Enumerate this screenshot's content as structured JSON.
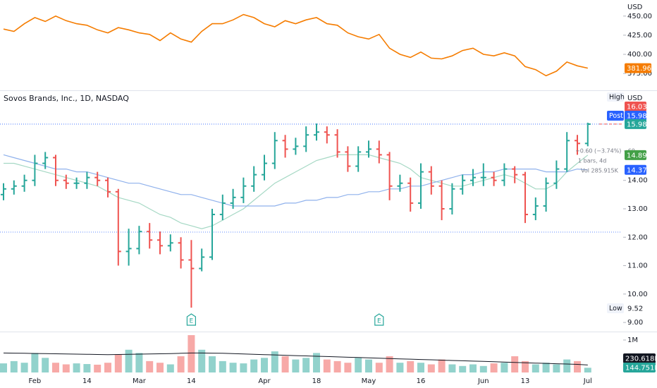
{
  "chart_data": [
    {
      "type": "line",
      "unit_label": "USD",
      "series": [
        {
          "color": "#f57c00",
          "values": [
            433,
            430,
            440,
            448,
            443,
            450,
            444,
            440,
            438,
            432,
            428,
            435,
            432,
            428,
            426,
            418,
            428,
            420,
            416,
            430,
            440,
            440,
            445,
            452,
            448,
            440,
            436,
            444,
            440,
            445,
            448,
            440,
            438,
            428,
            423,
            420,
            426,
            408,
            400,
            396,
            403,
            395,
            394,
            398,
            405,
            408,
            400,
            398,
            402,
            398,
            384,
            380,
            372,
            378,
            390,
            385,
            381.96
          ]
        }
      ],
      "ylim": [
        353,
        471
      ],
      "yticks": [
        {
          "value": 375,
          "label": "375.00"
        },
        {
          "value": 400,
          "label": "400.00"
        },
        {
          "value": 425,
          "label": "425.00"
        },
        {
          "value": 450,
          "label": "450.00"
        }
      ]
    },
    {
      "type": "ohlc",
      "legend": "Sovos Brands, Inc., 1D, NASDAQ",
      "unit_label": "USD",
      "categories": [
        null,
        null,
        null,
        "Feb",
        null,
        null,
        null,
        null,
        "14",
        null,
        null,
        null,
        null,
        "Mar",
        null,
        null,
        null,
        null,
        "14",
        null,
        null,
        null,
        null,
        null,
        null,
        "Apr",
        null,
        null,
        null,
        null,
        "18",
        null,
        null,
        null,
        null,
        "May",
        null,
        null,
        null,
        null,
        "16",
        null,
        null,
        null,
        null,
        null,
        "Jun",
        null,
        null,
        null,
        "13",
        null,
        null,
        null,
        null,
        null,
        "Jul"
      ],
      "open": [
        13.5,
        13.7,
        13.8,
        14.0,
        14.6,
        14.8,
        14.0,
        13.9,
        13.9,
        14.1,
        14.0,
        13.6,
        11.5,
        11.6,
        12.2,
        11.9,
        11.7,
        11.8,
        11.2,
        10.9,
        11.3,
        12.8,
        13.2,
        13.4,
        13.8,
        14.2,
        14.6,
        15.4,
        15.1,
        15.2,
        15.6,
        15.7,
        15.6,
        15.0,
        14.5,
        15.0,
        15.1,
        14.9,
        13.8,
        13.9,
        13.2,
        14.3,
        13.8,
        13.0,
        13.7,
        14.0,
        14.1,
        14.1,
        14.0,
        14.4,
        14.2,
        12.8,
        13.1,
        13.9,
        14.4,
        15.4,
        15.3
      ],
      "high": [
        13.9,
        14.0,
        14.2,
        14.9,
        15.0,
        14.9,
        14.2,
        14.1,
        14.3,
        14.3,
        14.1,
        13.7,
        12.3,
        12.4,
        12.5,
        12.2,
        12.1,
        12.0,
        11.9,
        11.6,
        13.0,
        13.5,
        13.7,
        14.1,
        14.5,
        14.9,
        15.7,
        15.6,
        15.5,
        15.9,
        16.0,
        15.9,
        15.8,
        15.2,
        15.2,
        15.4,
        15.4,
        15.0,
        14.2,
        14.1,
        14.6,
        14.5,
        14.0,
        13.9,
        14.2,
        14.4,
        14.6,
        14.3,
        14.6,
        14.5,
        14.3,
        13.4,
        14.1,
        14.7,
        15.7,
        15.6,
        16.03
      ],
      "low": [
        13.3,
        13.5,
        13.6,
        13.8,
        14.4,
        13.8,
        13.7,
        13.7,
        13.7,
        13.8,
        13.4,
        11.0,
        11.0,
        11.4,
        11.6,
        11.4,
        11.5,
        10.9,
        9.52,
        10.8,
        11.2,
        12.6,
        13.0,
        13.2,
        13.6,
        14.0,
        14.4,
        14.8,
        14.9,
        15.0,
        15.4,
        15.3,
        14.8,
        14.3,
        14.3,
        14.8,
        14.6,
        13.3,
        13.6,
        12.9,
        13.0,
        13.5,
        12.6,
        12.8,
        13.5,
        13.8,
        13.8,
        13.8,
        13.8,
        13.9,
        12.5,
        12.6,
        12.9,
        13.7,
        14.3,
        14.9,
        15.2
      ],
      "close": [
        13.7,
        13.8,
        14.0,
        14.6,
        14.8,
        14.0,
        13.9,
        13.9,
        14.1,
        14.0,
        13.6,
        11.5,
        11.6,
        12.2,
        11.9,
        11.7,
        11.8,
        11.2,
        10.9,
        11.3,
        12.8,
        13.2,
        13.4,
        13.8,
        14.2,
        14.6,
        15.4,
        15.1,
        15.2,
        15.6,
        15.7,
        15.6,
        15.0,
        14.5,
        15.0,
        15.1,
        14.9,
        13.8,
        13.9,
        13.2,
        14.3,
        13.8,
        13.0,
        13.7,
        14.0,
        14.1,
        14.1,
        14.0,
        14.4,
        14.2,
        12.8,
        13.1,
        13.9,
        14.4,
        15.4,
        15.3,
        15.98
      ],
      "up_color": "#26a69a",
      "down_color": "#ef5350",
      "series": [
        {
          "color": "#a5d8c4",
          "label_color": "#43a047",
          "values": [
            14.6,
            14.6,
            14.5,
            14.4,
            14.3,
            14.2,
            14.1,
            14.0,
            13.9,
            13.8,
            13.6,
            13.4,
            13.3,
            13.2,
            13.0,
            12.8,
            12.7,
            12.5,
            12.4,
            12.3,
            12.4,
            12.6,
            12.8,
            13.0,
            13.3,
            13.6,
            13.9,
            14.1,
            14.3,
            14.5,
            14.7,
            14.8,
            14.9,
            14.9,
            14.9,
            14.9,
            14.8,
            14.7,
            14.6,
            14.4,
            14.1,
            14.0,
            13.9,
            13.8,
            13.8,
            13.9,
            14.0,
            14.1,
            14.2,
            14.1,
            13.9,
            13.7,
            13.7,
            13.9,
            14.3,
            14.6,
            14.89
          ]
        },
        {
          "color": "#8fb1ec",
          "label_color": "#2962ff",
          "values": [
            14.9,
            14.8,
            14.7,
            14.6,
            14.5,
            14.4,
            14.4,
            14.3,
            14.3,
            14.2,
            14.1,
            14.0,
            13.9,
            13.9,
            13.8,
            13.7,
            13.6,
            13.5,
            13.5,
            13.4,
            13.3,
            13.2,
            13.1,
            13.1,
            13.1,
            13.1,
            13.1,
            13.2,
            13.2,
            13.3,
            13.3,
            13.4,
            13.4,
            13.5,
            13.5,
            13.6,
            13.6,
            13.7,
            13.7,
            13.8,
            13.8,
            13.9,
            14.0,
            14.1,
            14.2,
            14.2,
            14.3,
            14.3,
            14.4,
            14.4,
            14.4,
            14.4,
            14.3,
            14.3,
            14.3,
            14.4,
            14.37
          ]
        }
      ],
      "high_label": "High",
      "low_label": "Low",
      "post_label": "Post",
      "post_price": 15.98,
      "ref_lines": [
        12.18
      ],
      "events": [
        {
          "at": 18,
          "label": "E"
        },
        {
          "at": 36,
          "label": "E"
        }
      ],
      "measure": [
        "−0.60 (−3.74%) −60",
        "1 bars, 4d",
        "Vol 285.915K"
      ],
      "ylim": [
        8.68,
        17.17
      ],
      "yticks": [
        {
          "value": 9,
          "label": "9.00"
        },
        {
          "value": 10,
          "label": "10.00"
        },
        {
          "value": 11,
          "label": "11.00"
        },
        {
          "value": 12,
          "label": "12.00"
        },
        {
          "value": 13,
          "label": "13.00"
        },
        {
          "value": 14,
          "label": "14.00"
        }
      ]
    },
    {
      "type": "volume",
      "series": [
        {
          "values": [
            280000,
            350000,
            300000,
            600000,
            450000,
            300000,
            250000,
            280000,
            260000,
            240000,
            300000,
            550000,
            700000,
            600000,
            350000,
            300000,
            250000,
            500000,
            1150000,
            700000,
            500000,
            350000,
            300000,
            280000,
            400000,
            450000,
            650000,
            500000,
            400000,
            450000,
            600000,
            400000,
            350000,
            300000,
            450000,
            400000,
            300000,
            500000,
            300000,
            350000,
            300000,
            250000,
            400000,
            250000,
            200000,
            250000,
            200000,
            280000,
            300000,
            500000,
            350000,
            250000,
            300000,
            250000,
            400000,
            350000,
            144751
          ],
          "value_labels": [
            null,
            null,
            null,
            null,
            null,
            null,
            null,
            null,
            null,
            null,
            null,
            null,
            null,
            null,
            null,
            null,
            null,
            null,
            null,
            null,
            null,
            null,
            null,
            null,
            null,
            null,
            null,
            null,
            null,
            null,
            null,
            null,
            null,
            null,
            null,
            null,
            null,
            null,
            null,
            null,
            null,
            null,
            null,
            null,
            null,
            null,
            null,
            null,
            null,
            null,
            null,
            null,
            null,
            null,
            null,
            null,
            "144.751K"
          ]
        },
        {
          "color": "#131722",
          "values": [
            600000,
            595000,
            590000,
            585000,
            580000,
            575000,
            570000,
            565000,
            560000,
            555000,
            550000,
            555000,
            560000,
            565000,
            570000,
            575000,
            580000,
            590000,
            600000,
            600000,
            595000,
            590000,
            580000,
            570000,
            560000,
            550000,
            540000,
            530000,
            520000,
            510000,
            500000,
            490000,
            480000,
            470000,
            460000,
            450000,
            440000,
            430000,
            420000,
            410000,
            400000,
            390000,
            380000,
            370000,
            360000,
            350000,
            340000,
            330000,
            320000,
            310000,
            300000,
            290000,
            280000,
            270000,
            260000,
            250000,
            230618
          ],
          "value_labels": [
            null,
            null,
            null,
            null,
            null,
            null,
            null,
            null,
            null,
            null,
            null,
            null,
            null,
            null,
            null,
            null,
            null,
            null,
            null,
            null,
            null,
            null,
            null,
            null,
            null,
            null,
            null,
            null,
            null,
            null,
            null,
            null,
            null,
            null,
            null,
            null,
            null,
            null,
            null,
            null,
            null,
            null,
            null,
            null,
            null,
            null,
            null,
            null,
            null,
            null,
            null,
            null,
            null,
            null,
            null,
            null,
            "230.618K"
          ]
        }
      ],
      "ylim": [
        0,
        1260000
      ],
      "yticks": [
        {
          "value": 1000000,
          "label": "1M"
        }
      ]
    }
  ]
}
